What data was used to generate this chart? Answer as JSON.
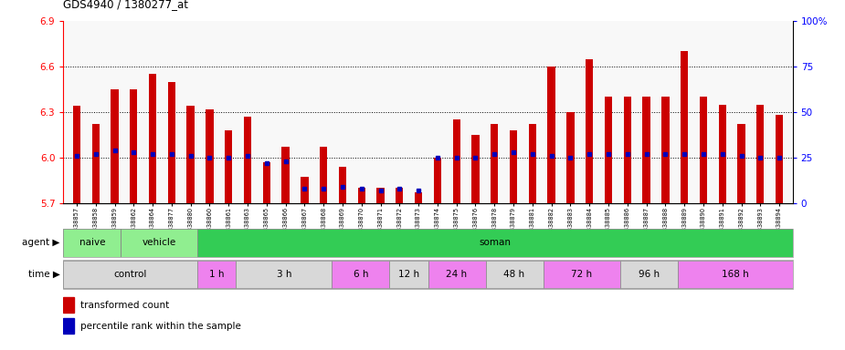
{
  "title": "GDS4940 / 1380277_at",
  "samples": [
    "GSM338857",
    "GSM338858",
    "GSM338859",
    "GSM338862",
    "GSM338864",
    "GSM338877",
    "GSM338880",
    "GSM338860",
    "GSM338861",
    "GSM338863",
    "GSM338865",
    "GSM338866",
    "GSM338867",
    "GSM338868",
    "GSM338869",
    "GSM338870",
    "GSM338871",
    "GSM338872",
    "GSM338873",
    "GSM338874",
    "GSM338875",
    "GSM338876",
    "GSM338878",
    "GSM338879",
    "GSM338881",
    "GSM338882",
    "GSM338883",
    "GSM338884",
    "GSM338885",
    "GSM338886",
    "GSM338887",
    "GSM338888",
    "GSM338889",
    "GSM338890",
    "GSM338891",
    "GSM338892",
    "GSM338893",
    "GSM338894"
  ],
  "red_values": [
    6.34,
    6.22,
    6.45,
    6.45,
    6.55,
    6.5,
    6.34,
    6.32,
    6.18,
    6.27,
    5.97,
    6.07,
    5.87,
    6.07,
    5.94,
    5.8,
    5.8,
    5.8,
    5.77,
    6.0,
    6.25,
    6.15,
    6.22,
    6.18,
    6.22,
    6.6,
    6.3,
    6.65,
    6.4,
    6.4,
    6.4,
    6.4,
    6.7,
    6.4,
    6.35,
    6.22,
    6.35,
    6.28
  ],
  "blue_percentiles": [
    26,
    27,
    29,
    28,
    27,
    27,
    26,
    25,
    25,
    26,
    22,
    23,
    8,
    8,
    9,
    8,
    7,
    8,
    7,
    25,
    25,
    25,
    27,
    28,
    27,
    26,
    25,
    27,
    27,
    27,
    27,
    27,
    27,
    27,
    27,
    26,
    25,
    25
  ],
  "ylim_left": [
    5.7,
    6.9
  ],
  "ylim_right": [
    0,
    100
  ],
  "yticks_left": [
    5.7,
    6.0,
    6.3,
    6.6,
    6.9
  ],
  "yticks_right": [
    0,
    25,
    50,
    75,
    100
  ],
  "agent_groups": [
    {
      "label": "naive",
      "start": 0,
      "end": 3,
      "color": "#90ee90"
    },
    {
      "label": "vehicle",
      "start": 3,
      "end": 7,
      "color": "#90ee90"
    },
    {
      "label": "soman",
      "start": 7,
      "end": 38,
      "color": "#33cc55"
    }
  ],
  "agent_dividers": [
    3
  ],
  "time_groups": [
    {
      "label": "control",
      "start": 0,
      "end": 7,
      "color": "#d8d8d8"
    },
    {
      "label": "1 h",
      "start": 7,
      "end": 9,
      "color": "#ee82ee"
    },
    {
      "label": "3 h",
      "start": 9,
      "end": 14,
      "color": "#d8d8d8"
    },
    {
      "label": "6 h",
      "start": 14,
      "end": 17,
      "color": "#ee82ee"
    },
    {
      "label": "12 h",
      "start": 17,
      "end": 19,
      "color": "#d8d8d8"
    },
    {
      "label": "24 h",
      "start": 19,
      "end": 22,
      "color": "#ee82ee"
    },
    {
      "label": "48 h",
      "start": 22,
      "end": 25,
      "color": "#d8d8d8"
    },
    {
      "label": "72 h",
      "start": 25,
      "end": 29,
      "color": "#ee82ee"
    },
    {
      "label": "96 h",
      "start": 29,
      "end": 32,
      "color": "#d8d8d8"
    },
    {
      "label": "168 h",
      "start": 32,
      "end": 38,
      "color": "#ee82ee"
    }
  ],
  "bar_color": "#cc0000",
  "dot_color": "#0000bb",
  "bar_width": 0.4,
  "base_value": 5.7,
  "grid_lines": [
    6.0,
    6.3,
    6.6
  ],
  "bg_color": "#ffffff"
}
